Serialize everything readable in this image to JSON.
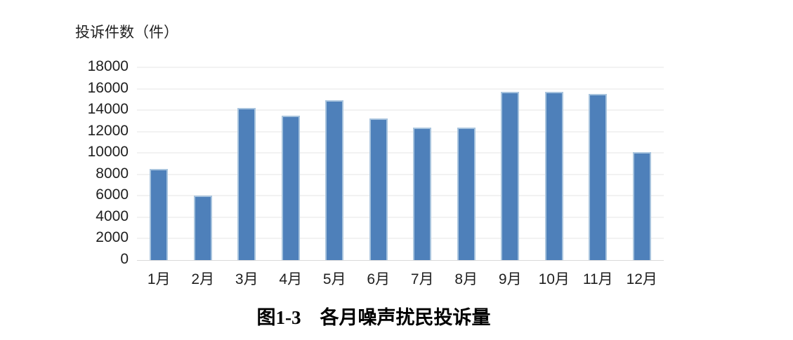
{
  "figure": {
    "y_axis_title": "投诉件数（件）",
    "caption": "图1-3　各月噪声扰民投诉量"
  },
  "chart_data": {
    "type": "bar",
    "title": "图1-3　各月噪声扰民投诉量",
    "ylabel": "投诉件数（件）",
    "xlabel": "",
    "categories": [
      "1月",
      "2月",
      "3月",
      "4月",
      "5月",
      "6月",
      "7月",
      "8月",
      "9月",
      "10月",
      "11月",
      "12月"
    ],
    "values": [
      8500,
      6000,
      14200,
      13500,
      14900,
      13200,
      12400,
      12400,
      15700,
      15700,
      15500,
      10100
    ],
    "ylim": [
      0,
      18000
    ],
    "ytick_step": 2000,
    "yticks": [
      0,
      2000,
      4000,
      6000,
      8000,
      10000,
      12000,
      14000,
      16000,
      18000
    ],
    "grid": true,
    "legend_position": "none",
    "colors": {
      "bar_fill": "#4e80ba",
      "bar_border": "#a8c4de",
      "gridline": "#f2f2f2",
      "axis_line": "#d9d9d9",
      "text": "#1f1f1f"
    }
  }
}
